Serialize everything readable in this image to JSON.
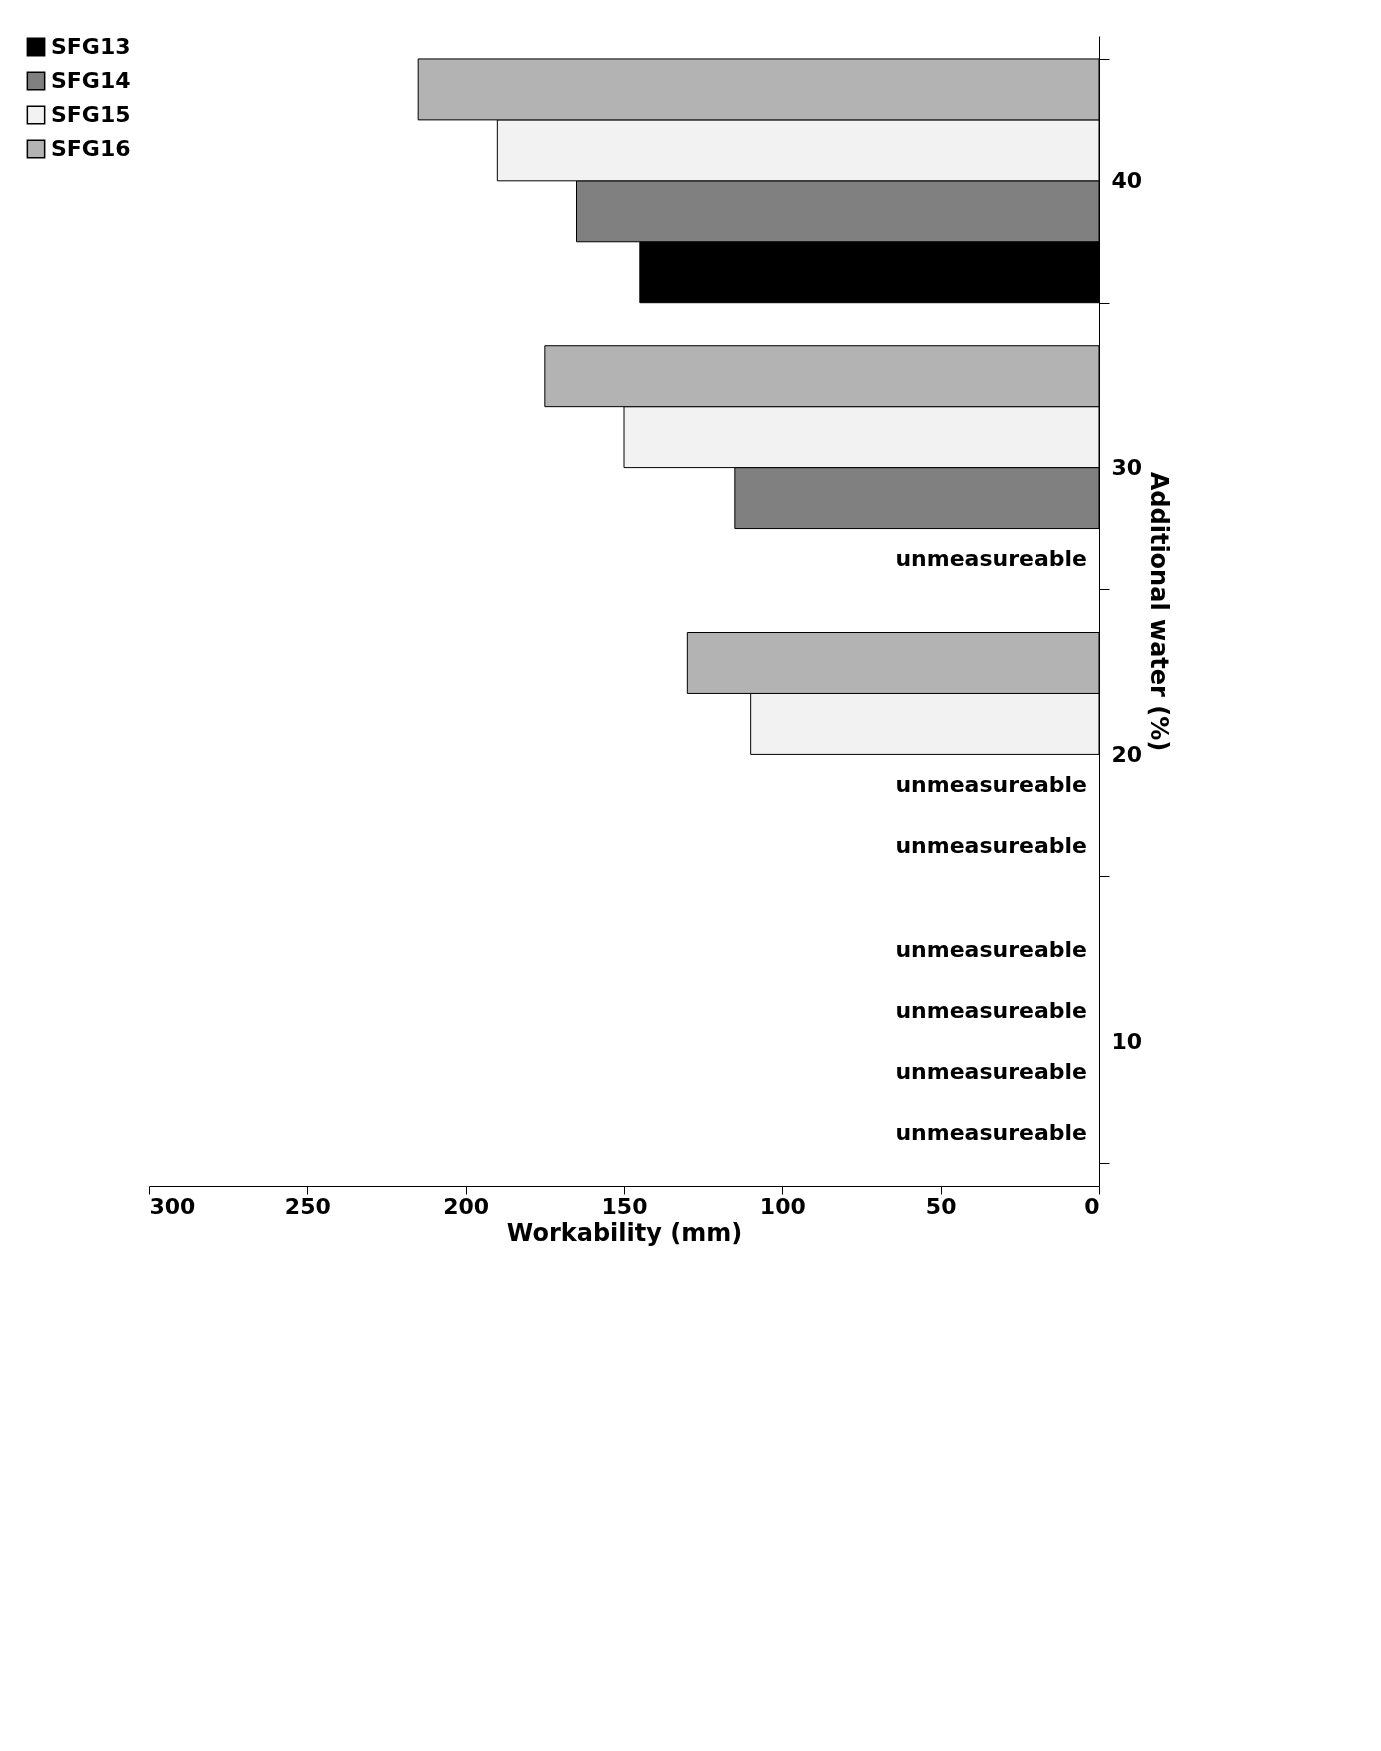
{
  "chart_data": {
    "type": "bar",
    "orientation": "horizontal",
    "xlabel": "Workability (mm)",
    "ylabel": "Additional water (%)",
    "categories": [
      "40",
      "30",
      "20",
      "10"
    ],
    "xlim": [
      300,
      0
    ],
    "xticks": [
      0,
      50,
      100,
      150,
      200,
      250,
      300
    ],
    "series": [
      {
        "name": "SFG13",
        "color": "#000000",
        "values": [
          145,
          null,
          null,
          null
        ],
        "value_labels": [
          null,
          "unmeasureable",
          "unmeasureable",
          "unmeasureable"
        ]
      },
      {
        "name": "SFG14",
        "color": "#808080",
        "values": [
          165,
          115,
          null,
          null
        ],
        "value_labels": [
          null,
          null,
          "unmeasureable",
          "unmeasureable"
        ]
      },
      {
        "name": "SFG15",
        "color": "#f2f2f2",
        "values": [
          190,
          150,
          110,
          null
        ],
        "value_labels": [
          null,
          null,
          null,
          "unmeasureable"
        ]
      },
      {
        "name": "SFG16",
        "color": "#b3b3b3",
        "values": [
          215,
          175,
          130,
          null
        ],
        "value_labels": [
          null,
          null,
          null,
          "unmeasureable"
        ]
      }
    ],
    "grid": false,
    "legend": "left"
  }
}
